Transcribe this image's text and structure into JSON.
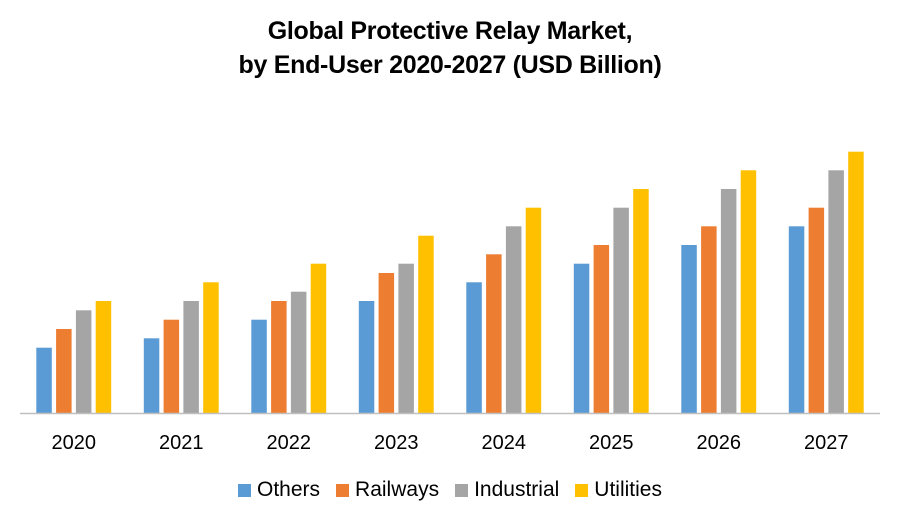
{
  "chart_data": {
    "type": "bar",
    "title": "Global Protective Relay Market, by End-User 2020-2027 (USD Billion)",
    "title_lines": [
      "Global Protective Relay Market,",
      "by End-User 2020-2027 (USD Billion)"
    ],
    "xlabel": "",
    "ylabel": "",
    "y_axis_visible": false,
    "grid": false,
    "legend_position": "bottom",
    "ylim": [
      0,
      3.0
    ],
    "categories": [
      "2020",
      "2021",
      "2022",
      "2023",
      "2024",
      "2025",
      "2026",
      "2027"
    ],
    "series": [
      {
        "name": "Others",
        "color": "#5B9BD5",
        "values": [
          0.7,
          0.8,
          1.0,
          1.2,
          1.4,
          1.6,
          1.8,
          2.0
        ]
      },
      {
        "name": "Railways",
        "color": "#ED7D31",
        "values": [
          0.9,
          1.0,
          1.2,
          1.5,
          1.7,
          1.8,
          2.0,
          2.2
        ]
      },
      {
        "name": "Industrial",
        "color": "#A5A5A5",
        "values": [
          1.1,
          1.2,
          1.3,
          1.6,
          2.0,
          2.2,
          2.4,
          2.6
        ]
      },
      {
        "name": "Utilities",
        "color": "#FFC000",
        "values": [
          1.2,
          1.4,
          1.6,
          1.9,
          2.2,
          2.4,
          2.6,
          2.8
        ]
      }
    ],
    "value_note": "No value axis shown; values are relative estimates from bar heights"
  }
}
